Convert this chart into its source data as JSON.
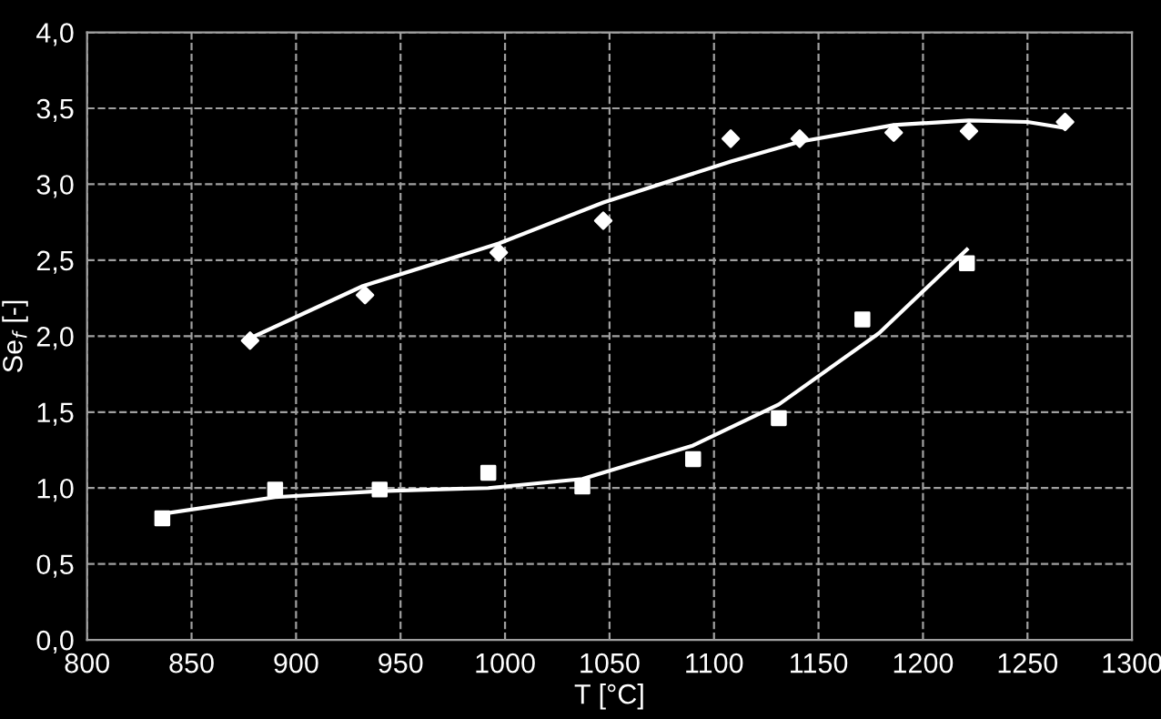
{
  "chart_data": {
    "type": "scatter",
    "xlabel": "T [°C]",
    "ylabel": "Se$_{f}$ [-]",
    "xlim": [
      800,
      1300
    ],
    "xticks": [
      800,
      850,
      900,
      950,
      1000,
      1050,
      1100,
      1150,
      1200,
      1250,
      1300
    ],
    "ylim": [
      0,
      4
    ],
    "yticks": [
      {
        "value": 0,
        "label": "0,0"
      },
      {
        "value": 0.5,
        "label": "0,5"
      },
      {
        "value": 1,
        "label": "1,0"
      },
      {
        "value": 1.5,
        "label": "1,5"
      },
      {
        "value": 2,
        "label": "2,0"
      },
      {
        "value": 2.5,
        "label": "2,5"
      },
      {
        "value": 3,
        "label": "3,0"
      },
      {
        "value": 3.5,
        "label": "3,5"
      },
      {
        "value": 4,
        "label": "4,0"
      }
    ],
    "grid": true,
    "series": [
      {
        "marker": "diamond",
        "color": "#ffffff",
        "x": [
          878,
          933,
          997,
          1047,
          1108,
          1141,
          1186,
          1222,
          1268
        ],
        "values": [
          1.97,
          2.27,
          2.55,
          2.76,
          3.3,
          3.3,
          3.34,
          3.35,
          3.41
        ]
      },
      {
        "marker": "square",
        "color": "#ffffff",
        "x": [
          836,
          890,
          940,
          992,
          1037,
          1090,
          1131,
          1171,
          1221
        ],
        "values": [
          0.8,
          0.99,
          0.99,
          1.1,
          1.01,
          1.19,
          1.46,
          2.11,
          2.48
        ]
      },
      {
        "type": "line",
        "marker": "none",
        "color": "#ffffff",
        "x": [
          877,
          932,
          997,
          1047,
          1108,
          1141,
          1186,
          1222,
          1250,
          1268
        ],
        "values": [
          1.98,
          2.33,
          2.61,
          2.88,
          3.15,
          3.28,
          3.39,
          3.42,
          3.41,
          3.37
        ]
      },
      {
        "type": "line",
        "marker": "none",
        "color": "#ffffff",
        "x": [
          836,
          890,
          940,
          992,
          1037,
          1090,
          1131,
          1179,
          1221
        ],
        "values": [
          0.83,
          0.94,
          0.98,
          1.0,
          1.06,
          1.28,
          1.55,
          2.02,
          2.57
        ]
      }
    ]
  }
}
